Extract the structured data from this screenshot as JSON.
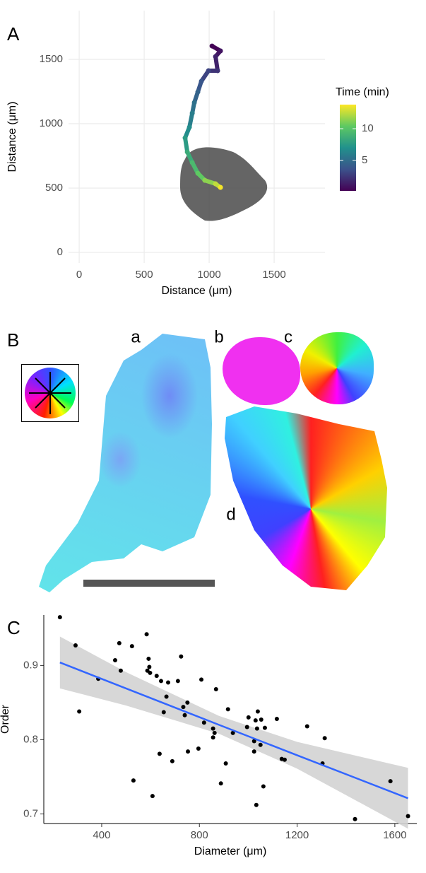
{
  "panel_labels": [
    "A",
    "B",
    "C"
  ],
  "panel_b": {
    "labels": [
      "a",
      "b",
      "c",
      "d"
    ]
  },
  "chart_data": [
    {
      "type": "line",
      "xlabel": "Distance (μm)",
      "ylabel": "Distance (μm)",
      "x": [
        1022,
        1087,
        1049,
        1065,
        995,
        940,
        913,
        886,
        870,
        848,
        815,
        832,
        870,
        913,
        967,
        1049,
        1087
      ],
      "y": [
        1604,
        1566,
        1522,
        1412,
        1412,
        1330,
        1247,
        1165,
        1082,
        973,
        890,
        780,
        698,
        615,
        560,
        533,
        505
      ],
      "time": [
        0.3,
        1,
        1.6,
        2.3,
        3,
        3.8,
        4.5,
        5.3,
        6,
        6.8,
        7.6,
        8.5,
        9.4,
        10.4,
        11.4,
        12.5,
        13.6
      ],
      "xlim": [
        -82,
        1891
      ],
      "ylim": [
        -82,
        1879
      ],
      "xticks": [
        0,
        500,
        1000,
        1500
      ],
      "yticks": [
        0,
        500,
        1000,
        1500
      ],
      "grid": true,
      "legend_title": "Time (min)",
      "colormap": "viridis",
      "colorbar_lim": [
        0.2,
        13.8
      ],
      "colorbar_ticks": [
        5,
        10
      ]
    },
    {
      "type": "scatter",
      "xlabel": "Diameter (μm)",
      "ylabel": "Order",
      "color": "#000000",
      "x": [
        229,
        293,
        308,
        386,
        455,
        478,
        472,
        524,
        584,
        595,
        592,
        587,
        598,
        625,
        643,
        672,
        712,
        654,
        665,
        725,
        734,
        751,
        740,
        819,
        808,
        868,
        856,
        862,
        856,
        917,
        530,
        608,
        637,
        689,
        753,
        796,
        888,
        908,
        937,
        995,
        1001,
        1024,
        1024,
        1030,
        1033,
        1036,
        1039,
        1053,
        1050,
        1062,
        1068,
        1117,
        1137,
        1149,
        1241,
        1313,
        1304,
        1437,
        1582,
        1654
      ],
      "y": [
        0.965,
        0.927,
        0.838,
        0.882,
        0.907,
        0.893,
        0.93,
        0.926,
        0.942,
        0.898,
        0.909,
        0.893,
        0.89,
        0.886,
        0.879,
        0.877,
        0.879,
        0.837,
        0.858,
        0.912,
        0.844,
        0.85,
        0.833,
        0.823,
        0.881,
        0.868,
        0.815,
        0.809,
        0.803,
        0.841,
        0.745,
        0.724,
        0.781,
        0.771,
        0.784,
        0.788,
        0.741,
        0.768,
        0.809,
        0.817,
        0.83,
        0.798,
        0.784,
        0.826,
        0.712,
        0.815,
        0.838,
        0.827,
        0.793,
        0.737,
        0.816,
        0.828,
        0.774,
        0.773,
        0.818,
        0.802,
        0.768,
        0.693,
        0.744,
        0.697
      ],
      "fit": {
        "x": [
          229,
          500,
          880,
          1200,
          1654
        ],
        "y": [
          0.904,
          0.869,
          0.82,
          0.779,
          0.721
        ],
        "upper": [
          0.939,
          0.891,
          0.832,
          0.797,
          0.762
        ],
        "lower": [
          0.869,
          0.846,
          0.808,
          0.761,
          0.68
        ]
      },
      "fit_color": "#3366ff",
      "band_color": "#d3d3d3",
      "xlim": [
        163,
        1690
      ],
      "ylim": [
        0.687,
        0.968
      ],
      "xticks": [
        400,
        800,
        1200,
        1600
      ],
      "yticks": [
        0.7,
        0.8,
        0.9
      ],
      "grid": false
    }
  ]
}
